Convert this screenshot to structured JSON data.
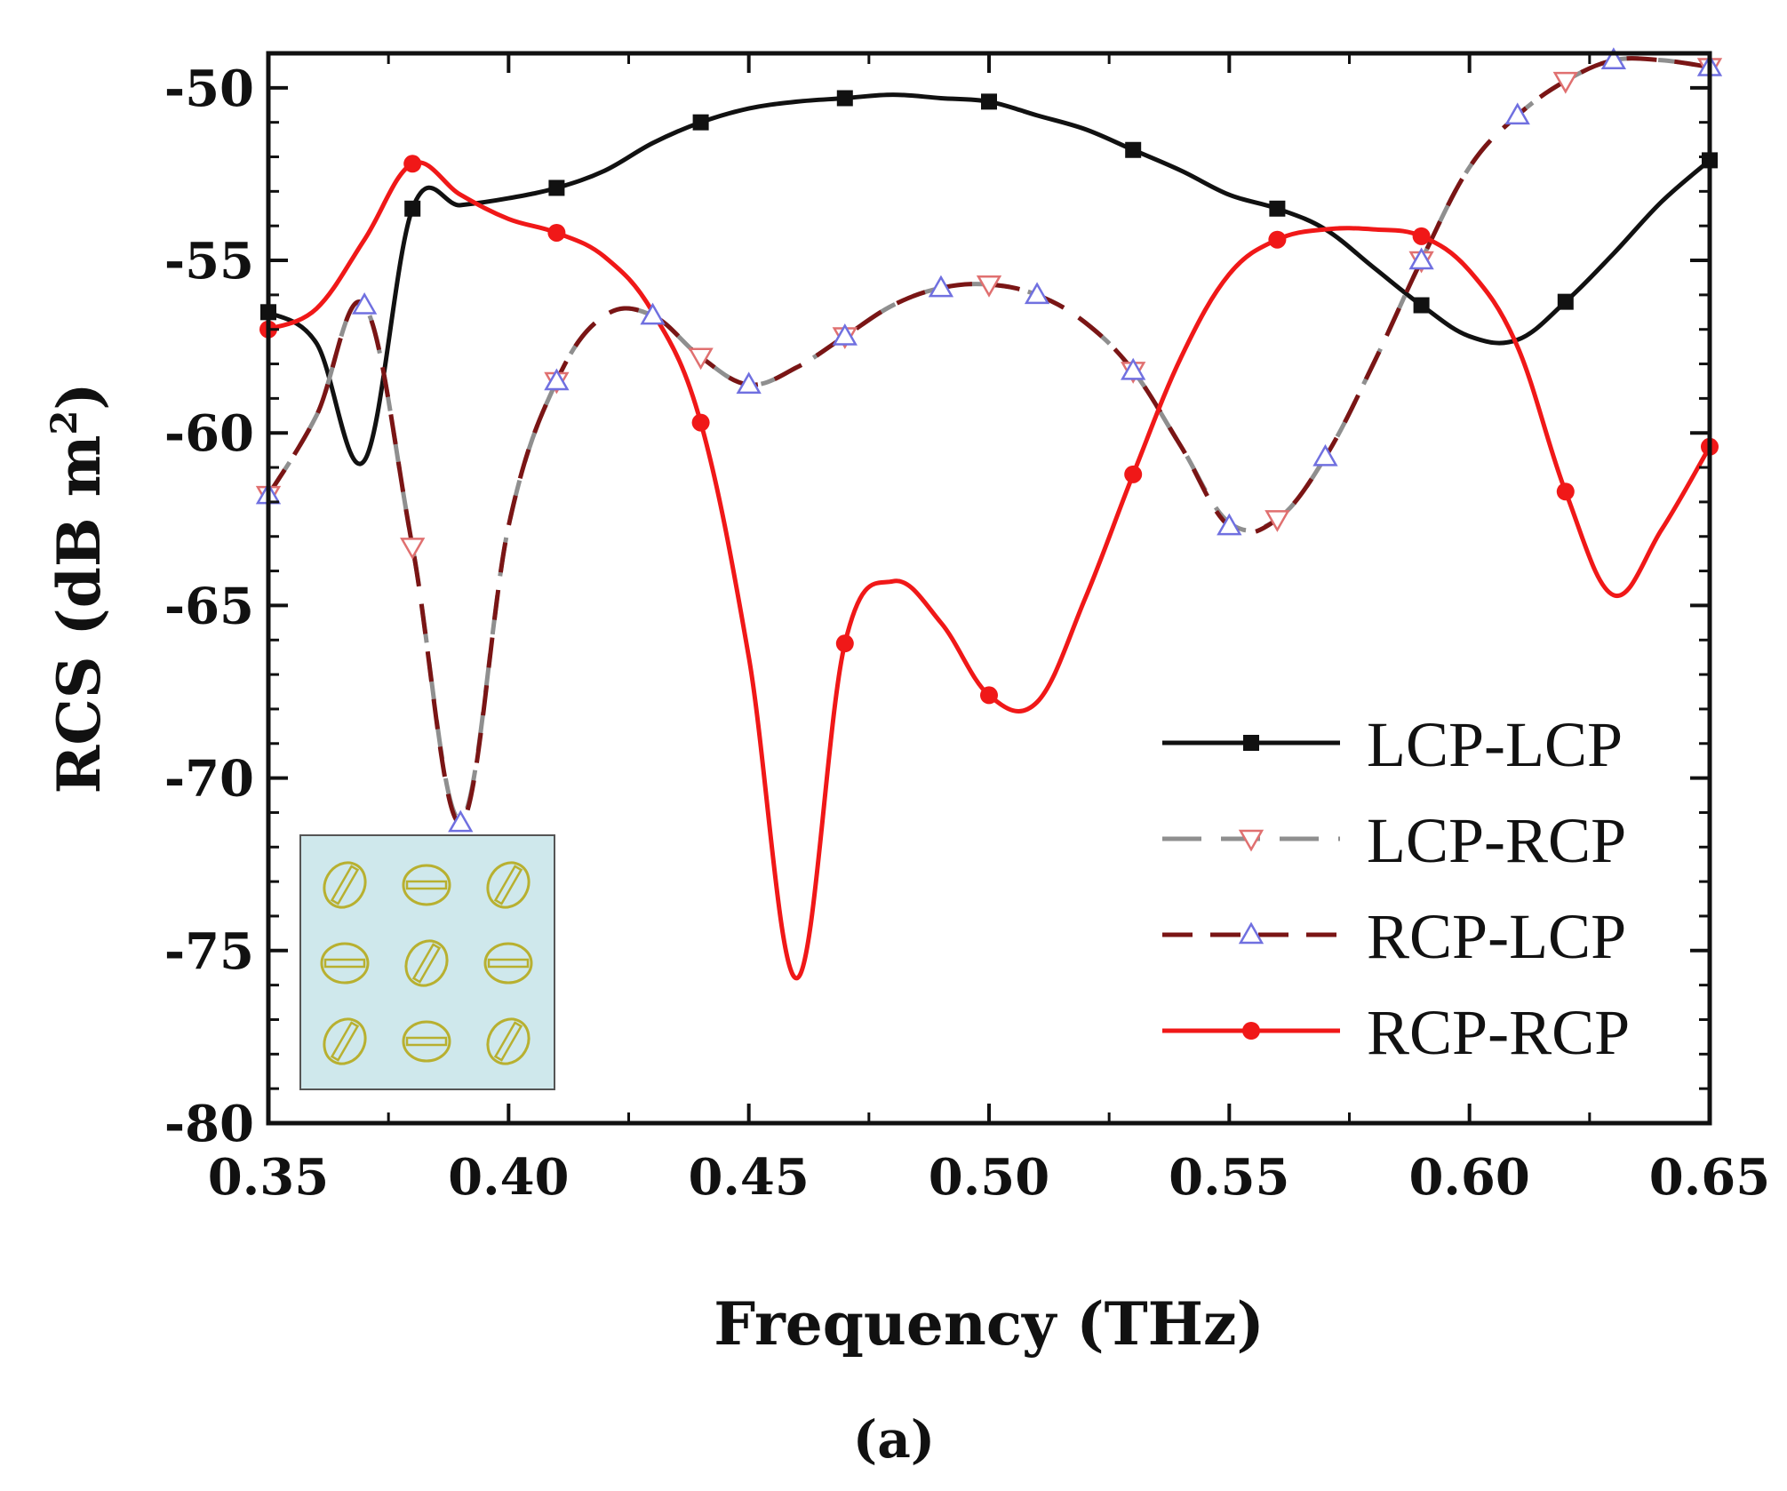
{
  "chart_data": {
    "type": "line",
    "xlabel": "Frequency (THz)",
    "ylabel_main": "RCS (dB m",
    "ylabel_sup": "2",
    "ylabel_close": ")",
    "caption": "(a)",
    "xlim": [
      0.35,
      0.65
    ],
    "ylim": [
      -80,
      -49
    ],
    "xticks": [
      0.35,
      0.4,
      0.45,
      0.5,
      0.55,
      0.6,
      0.65
    ],
    "xtick_labels": [
      "0.35",
      "0.40",
      "0.45",
      "0.50",
      "0.55",
      "0.60",
      "0.65"
    ],
    "yticks": [
      -50,
      -55,
      -60,
      -65,
      -70,
      -75,
      -80
    ],
    "ytick_labels": [
      "-50",
      "-55",
      "-60",
      "-65",
      "-70",
      "-75",
      "-80"
    ],
    "legend_position": "lower-right",
    "series": [
      {
        "name": "LCP-LCP",
        "color": "#111111",
        "dash": "solid",
        "marker": "square",
        "x": [
          0.35,
          0.36,
          0.37,
          0.38,
          0.39,
          0.4,
          0.41,
          0.42,
          0.43,
          0.44,
          0.45,
          0.46,
          0.47,
          0.48,
          0.49,
          0.5,
          0.51,
          0.52,
          0.53,
          0.54,
          0.55,
          0.56,
          0.57,
          0.58,
          0.59,
          0.6,
          0.61,
          0.62,
          0.63,
          0.64,
          0.65
        ],
        "y": [
          -56.5,
          -57.4,
          -60.8,
          -53.5,
          -53.4,
          -53.2,
          -52.9,
          -52.4,
          -51.6,
          -51.0,
          -50.6,
          -50.4,
          -50.3,
          -50.2,
          -50.3,
          -50.4,
          -50.8,
          -51.2,
          -51.8,
          -52.4,
          -53.1,
          -53.5,
          -54.1,
          -55.2,
          -56.3,
          -57.2,
          -57.3,
          -56.2,
          -54.8,
          -53.3,
          -52.1
        ],
        "marker_every": 3
      },
      {
        "name": "LCP-RCP",
        "color": "#8f8f8f",
        "dash": "long-dash",
        "marker": "triangle-down",
        "marker_color": "#e07070",
        "x": [
          0.35,
          0.36,
          0.37,
          0.38,
          0.39,
          0.4,
          0.41,
          0.42,
          0.43,
          0.44,
          0.45,
          0.46,
          0.47,
          0.48,
          0.49,
          0.5,
          0.51,
          0.52,
          0.53,
          0.54,
          0.55,
          0.56,
          0.57,
          0.58,
          0.59,
          0.6,
          0.61,
          0.62,
          0.63,
          0.64,
          0.65
        ],
        "y": [
          -61.8,
          -59.5,
          -56.3,
          -63.3,
          -71.2,
          -62.7,
          -58.5,
          -56.6,
          -56.6,
          -57.8,
          -58.6,
          -58.1,
          -57.2,
          -56.3,
          -55.8,
          -55.7,
          -56.0,
          -56.8,
          -58.2,
          -60.4,
          -62.6,
          -62.5,
          -60.7,
          -58.0,
          -55.0,
          -52.3,
          -50.8,
          -49.8,
          -49.2,
          -49.2,
          -49.4
        ],
        "marker_every": 3
      },
      {
        "name": "RCP-LCP",
        "color": "#7a1515",
        "dash": "dash",
        "marker": "triangle-up",
        "marker_color": "#7070e0",
        "x": [
          0.35,
          0.36,
          0.37,
          0.38,
          0.39,
          0.4,
          0.41,
          0.42,
          0.43,
          0.44,
          0.45,
          0.46,
          0.47,
          0.48,
          0.49,
          0.5,
          0.51,
          0.52,
          0.53,
          0.54,
          0.55,
          0.56,
          0.57,
          0.58,
          0.59,
          0.6,
          0.61,
          0.62,
          0.63,
          0.64,
          0.65
        ],
        "y": [
          -61.8,
          -59.5,
          -56.3,
          -63.3,
          -71.3,
          -62.7,
          -58.5,
          -56.6,
          -56.6,
          -57.8,
          -58.6,
          -58.1,
          -57.2,
          -56.3,
          -55.8,
          -55.7,
          -56.0,
          -56.8,
          -58.2,
          -60.4,
          -62.7,
          -62.5,
          -60.7,
          -58.0,
          -55.0,
          -52.3,
          -50.8,
          -49.8,
          -49.2,
          -49.2,
          -49.4
        ],
        "marker_every": 2
      },
      {
        "name": "RCP-RCP",
        "color": "#f01818",
        "dash": "solid",
        "marker": "circle",
        "x": [
          0.35,
          0.36,
          0.37,
          0.38,
          0.39,
          0.4,
          0.41,
          0.42,
          0.43,
          0.44,
          0.45,
          0.46,
          0.47,
          0.48,
          0.49,
          0.5,
          0.51,
          0.52,
          0.53,
          0.54,
          0.55,
          0.56,
          0.57,
          0.58,
          0.59,
          0.6,
          0.61,
          0.62,
          0.63,
          0.64,
          0.65
        ],
        "y": [
          -57.0,
          -56.4,
          -54.4,
          -52.2,
          -53.1,
          -53.8,
          -54.2,
          -54.9,
          -56.5,
          -59.7,
          -66.5,
          -75.8,
          -66.1,
          -64.3,
          -65.5,
          -67.6,
          -67.8,
          -64.8,
          -61.2,
          -57.8,
          -55.4,
          -54.4,
          -54.1,
          -54.1,
          -54.3,
          -55.3,
          -57.5,
          -61.7,
          -64.7,
          -62.8,
          -60.4
        ],
        "marker_every": 3
      }
    ]
  },
  "inset": {
    "description_rows": 3,
    "description_cols": 3,
    "bg_color": "#cfe8ec",
    "element_color": "#b8b030"
  }
}
